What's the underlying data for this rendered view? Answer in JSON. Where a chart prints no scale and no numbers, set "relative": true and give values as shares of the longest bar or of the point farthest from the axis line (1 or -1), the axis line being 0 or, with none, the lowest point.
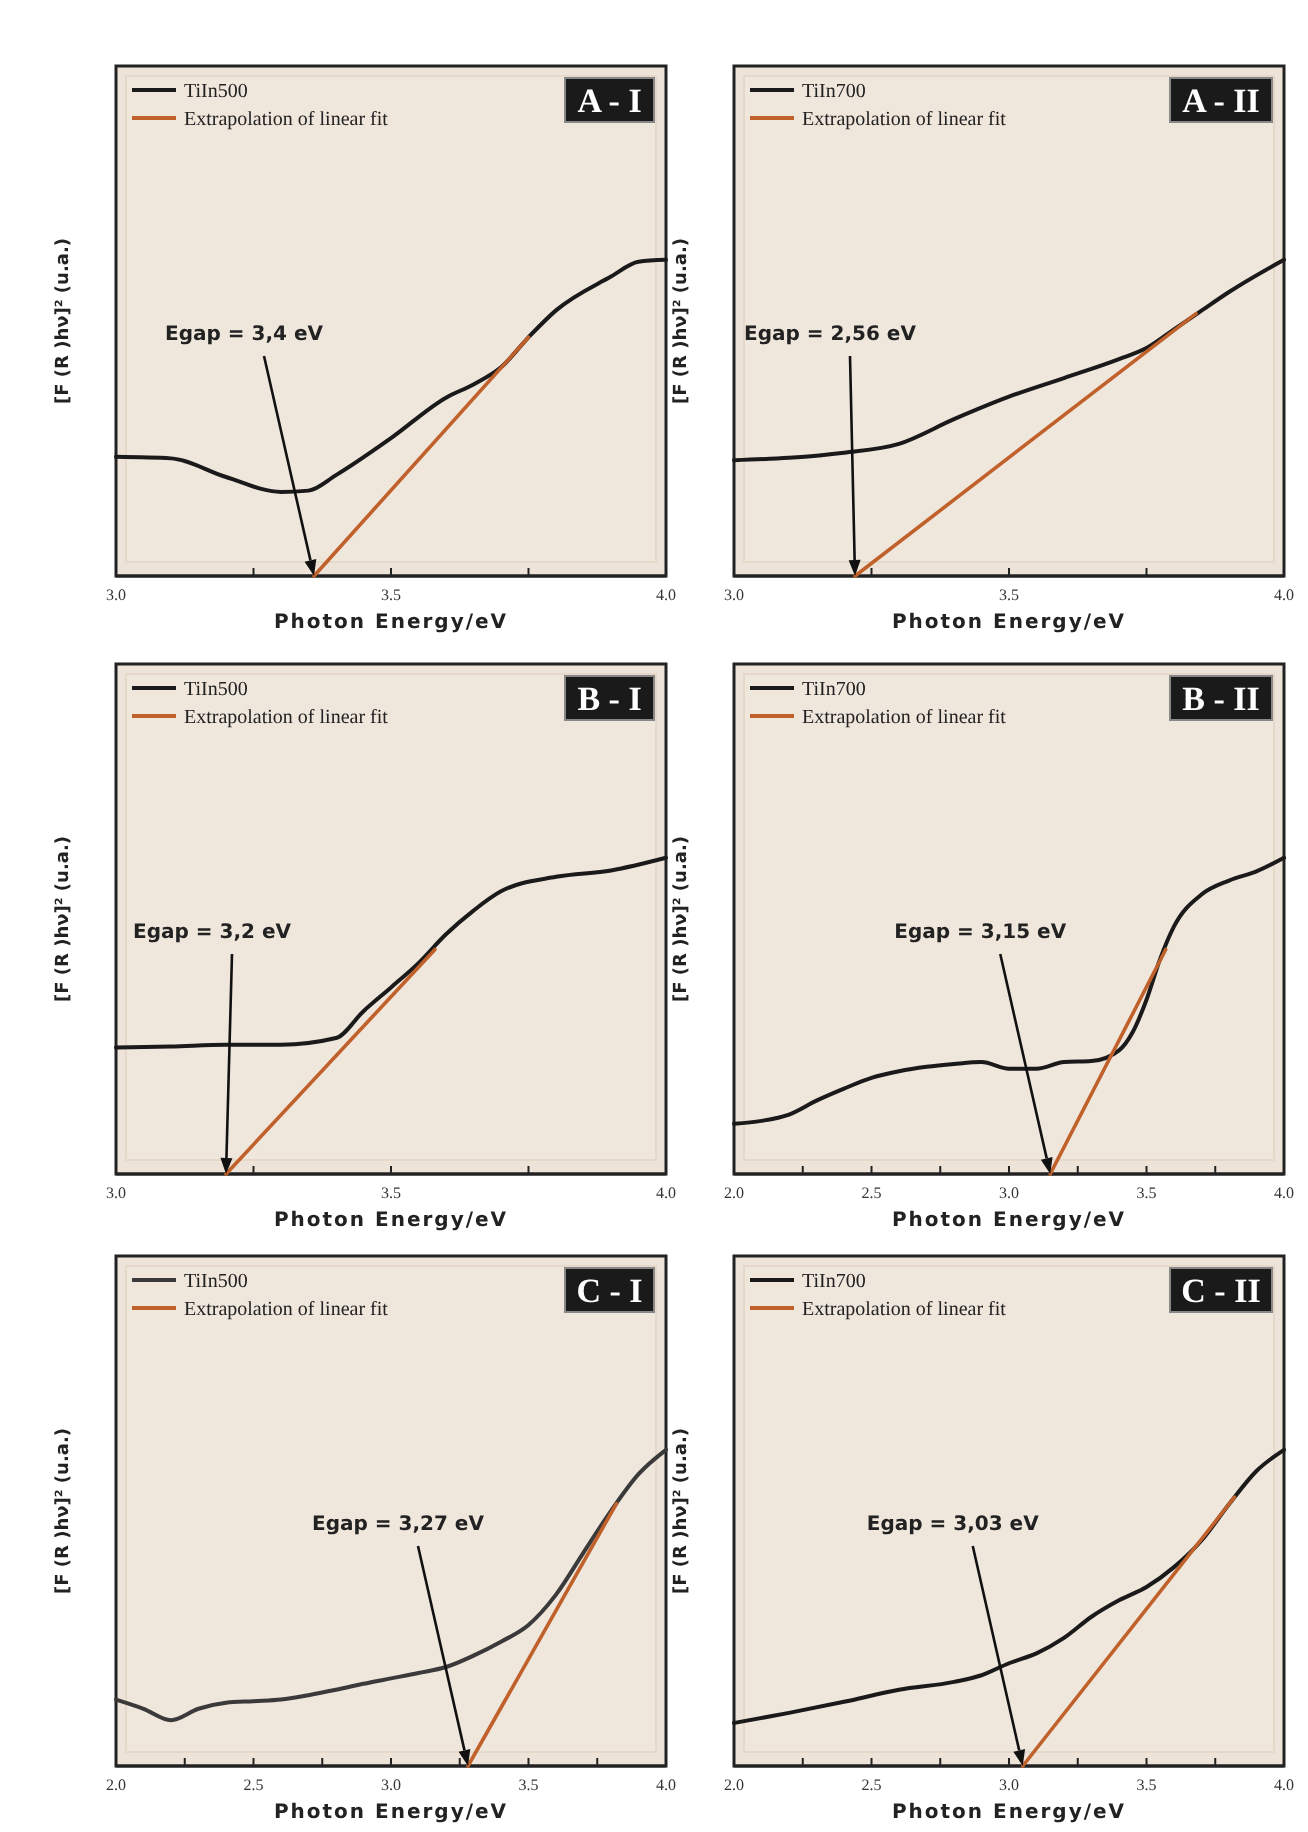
{
  "chart_data": [
    {
      "type": "line",
      "title": "A - I",
      "xlabel": "Photon Energy/eV",
      "ylabel": "[F (R )hν]² (u.a.)",
      "relative": true,
      "legend": "top left",
      "tick_labels": "x",
      "xlim": [
        3.0,
        4.0
      ],
      "xticks": [
        {
          "value": 3,
          "label": "3.0"
        },
        {
          "value": 3.25,
          "label": null
        },
        {
          "value": 3.5,
          "label": "3.5"
        },
        {
          "value": 3.75,
          "label": null
        },
        {
          "value": 4,
          "label": "4.0"
        }
      ],
      "series": [
        {
          "name": "TiIn500",
          "color": "#1a1a1a",
          "x": [
            3.0,
            3.1,
            3.2,
            3.3,
            3.35,
            3.4,
            3.5,
            3.6,
            3.65,
            3.7,
            3.75,
            3.8,
            3.9,
            3.95,
            4.0
          ],
          "values": [
            0.377,
            0.372,
            0.313,
            0.266,
            0.27,
            0.319,
            0.436,
            0.564,
            0.606,
            0.66,
            0.755,
            0.84,
            0.947,
            0.994,
            1
          ]
        },
        {
          "name": "Extrapolation of linear fit",
          "color": "#c0612b",
          "x": [
            3.36,
            3.75
          ],
          "values": [
            0,
            0.755
          ]
        }
      ],
      "annotations": [
        {
          "text": "Egap = 3,4 eV",
          "x": 3.36,
          "y": 0
        }
      ]
    },
    {
      "type": "line",
      "title": "A - II",
      "xlabel": "Photon Energy/eV",
      "ylabel": "[F (R )hν]² (u.a.)",
      "relative": true,
      "legend": "top left",
      "tick_labels": "x",
      "xlim": [
        3.0,
        4.0
      ],
      "xticks": [
        {
          "value": 3,
          "label": "3.0"
        },
        {
          "value": 3.25,
          "label": null
        },
        {
          "value": 3.5,
          "label": "3.5"
        },
        {
          "value": 3.75,
          "label": null
        },
        {
          "value": 4,
          "label": "4.0"
        }
      ],
      "series": [
        {
          "name": "TiIn700",
          "color": "#1a1a1a",
          "x": [
            3.0,
            3.1,
            3.2,
            3.3,
            3.4,
            3.5,
            3.6,
            3.7,
            3.75,
            3.8,
            3.85,
            3.9,
            4.0
          ],
          "values": [
            0.366,
            0.374,
            0.39,
            0.418,
            0.496,
            0.567,
            0.626,
            0.686,
            0.721,
            0.78,
            0.839,
            0.898,
            1
          ]
        },
        {
          "name": "Extrapolation of linear fit",
          "color": "#c0612b",
          "x": [
            3.22,
            3.84
          ],
          "values": [
            0,
            0.83
          ]
        }
      ],
      "annotations": [
        {
          "text": "Egap = 2,56 eV",
          "x": 3.22,
          "y": 0
        }
      ]
    },
    {
      "type": "line",
      "title": "B - I",
      "xlabel": "Photon Energy/eV",
      "ylabel": "[F (R )hν]² (u.a.)",
      "relative": true,
      "legend": "top left",
      "tick_labels": "x",
      "xlim": [
        3.0,
        4.0
      ],
      "xticks": [
        {
          "value": 3,
          "label": "3.0"
        },
        {
          "value": 3.25,
          "label": null
        },
        {
          "value": 3.5,
          "label": "3.5"
        },
        {
          "value": 3.75,
          "label": null
        },
        {
          "value": 4,
          "label": "4.0"
        }
      ],
      "series": [
        {
          "name": "TiIn500",
          "color": "#1a1a1a",
          "x": [
            3.0,
            3.1,
            3.2,
            3.3,
            3.4,
            3.45,
            3.5,
            3.55,
            3.6,
            3.65,
            3.7,
            3.8,
            3.9,
            4.0
          ],
          "values": [
            0.4,
            0.403,
            0.409,
            0.409,
            0.43,
            0.515,
            0.59,
            0.667,
            0.758,
            0.833,
            0.894,
            0.94,
            0.96,
            1
          ]
        },
        {
          "name": "Extrapolation of linear fit",
          "color": "#c0612b",
          "x": [
            3.2,
            3.58
          ],
          "values": [
            0,
            0.71
          ]
        }
      ],
      "annotations": [
        {
          "text": "Egap = 3,2 eV",
          "x": 3.2,
          "y": 0
        }
      ]
    },
    {
      "type": "line",
      "title": "B - II",
      "xlabel": "Photon Energy/eV",
      "ylabel": "[F (R )hν]² (u.a.)",
      "relative": true,
      "legend": "top left",
      "tick_labels": "x",
      "xlim": [
        2.0,
        4.0
      ],
      "xticks": [
        {
          "value": 2,
          "label": "2.0"
        },
        {
          "value": 2.25,
          "label": null
        },
        {
          "value": 2.5,
          "label": "2.5"
        },
        {
          "value": 2.75,
          "label": null
        },
        {
          "value": 3,
          "label": "3.0"
        },
        {
          "value": 3.25,
          "label": null
        },
        {
          "value": 3.5,
          "label": "3.5"
        },
        {
          "value": 3.75,
          "label": null
        },
        {
          "value": 4,
          "label": "4.0"
        }
      ],
      "series": [
        {
          "name": "TiIn700",
          "color": "#1a1a1a",
          "x": [
            2.0,
            2.1,
            2.2,
            2.3,
            2.4,
            2.5,
            2.6,
            2.7,
            2.8,
            2.9,
            3.0,
            3.1,
            3.2,
            3.3,
            3.4,
            3.45,
            3.5,
            3.55,
            3.6,
            3.7,
            3.8,
            3.9,
            4.0
          ],
          "values": [
            0.159,
            0.168,
            0.188,
            0.232,
            0.27,
            0.304,
            0.325,
            0.339,
            0.348,
            0.354,
            0.333,
            0.333,
            0.354,
            0.357,
            0.391,
            0.449,
            0.551,
            0.681,
            0.783,
            0.884,
            0.928,
            0.957,
            1
          ]
        },
        {
          "name": "Extrapolation of linear fit",
          "color": "#c0612b",
          "x": [
            3.15,
            3.57
          ],
          "values": [
            0,
            0.71
          ]
        }
      ],
      "annotations": [
        {
          "text": "Egap = 3,15 eV",
          "x": 3.15,
          "y": 0
        }
      ]
    },
    {
      "type": "line",
      "title": "C - I",
      "xlabel": "Photon Energy/eV",
      "ylabel": "[F (R )hν]² (u.a.)",
      "relative": true,
      "legend": "top left",
      "tick_labels": "x",
      "xlim": [
        2.0,
        4.0
      ],
      "xticks": [
        {
          "value": 2,
          "label": "2.0"
        },
        {
          "value": 2.25,
          "label": null
        },
        {
          "value": 2.5,
          "label": "2.5"
        },
        {
          "value": 2.75,
          "label": null
        },
        {
          "value": 3,
          "label": "3.0"
        },
        {
          "value": 3.25,
          "label": null
        },
        {
          "value": 3.5,
          "label": "3.5"
        },
        {
          "value": 3.75,
          "label": null
        },
        {
          "value": 4,
          "label": "4.0"
        }
      ],
      "series": [
        {
          "name": "TiIn500",
          "color": "#3a3a3a",
          "x": [
            2.0,
            2.1,
            2.2,
            2.3,
            2.4,
            2.5,
            2.6,
            2.7,
            2.8,
            2.9,
            3.0,
            3.1,
            3.2,
            3.3,
            3.4,
            3.5,
            3.6,
            3.7,
            3.8,
            3.9,
            4.0
          ],
          "values": [
            0.21,
            0.181,
            0.145,
            0.181,
            0.2,
            0.205,
            0.21,
            0.224,
            0.241,
            0.26,
            0.277,
            0.294,
            0.313,
            0.349,
            0.393,
            0.446,
            0.542,
            0.675,
            0.807,
            0.923,
            1
          ]
        },
        {
          "name": "Extrapolation of linear fit",
          "color": "#c0612b",
          "x": [
            3.28,
            3.82
          ],
          "values": [
            0,
            0.83
          ]
        }
      ],
      "annotations": [
        {
          "text": "Egap = 3,27 eV",
          "x": 3.28,
          "y": 0
        }
      ]
    },
    {
      "type": "line",
      "title": "C - II",
      "xlabel": "Photon Energy/eV",
      "ylabel": "[F (R )hν]² (u.a.)",
      "relative": true,
      "legend": "top left",
      "tick_labels": "x",
      "xlim": [
        2.0,
        4.0
      ],
      "xticks": [
        {
          "value": 2,
          "label": "2.0"
        },
        {
          "value": 2.25,
          "label": null
        },
        {
          "value": 2.5,
          "label": "2.5"
        },
        {
          "value": 2.75,
          "label": null
        },
        {
          "value": 3,
          "label": "3.0"
        },
        {
          "value": 3.25,
          "label": null
        },
        {
          "value": 3.5,
          "label": "3.5"
        },
        {
          "value": 3.75,
          "label": null
        },
        {
          "value": 4,
          "label": "4.0"
        }
      ],
      "series": [
        {
          "name": "TiIn700",
          "color": "#1a1a1a",
          "x": [
            2.0,
            2.2,
            2.4,
            2.6,
            2.8,
            2.9,
            3.0,
            3.1,
            3.2,
            3.3,
            3.4,
            3.5,
            3.6,
            3.7,
            3.8,
            3.9,
            4.0
          ],
          "values": [
            0.136,
            0.168,
            0.203,
            0.241,
            0.266,
            0.287,
            0.325,
            0.356,
            0.405,
            0.472,
            0.524,
            0.566,
            0.629,
            0.713,
            0.828,
            0.933,
            1
          ]
        },
        {
          "name": "Extrapolation of linear fit",
          "color": "#c0612b",
          "x": [
            3.05,
            3.82
          ],
          "values": [
            0,
            0.85
          ]
        }
      ],
      "annotations": [
        {
          "text": "Egap = 3,03 eV",
          "x": 3.05,
          "y": 0
        }
      ]
    }
  ]
}
